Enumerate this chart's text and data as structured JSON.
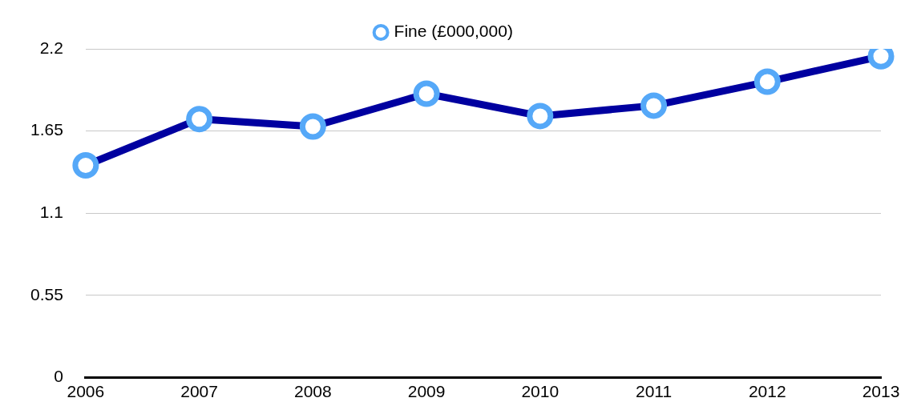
{
  "chart_data": {
    "type": "line",
    "categories": [
      "2006",
      "2007",
      "2008",
      "2009",
      "2010",
      "2011",
      "2012",
      "2013"
    ],
    "series": [
      {
        "name": "Fine (£000,000)",
        "color": "#0000a0",
        "values": [
          1.42,
          1.73,
          1.68,
          1.9,
          1.75,
          1.82,
          1.98,
          2.15
        ]
      }
    ],
    "ylim": [
      0,
      2.2
    ],
    "yticks": [
      0,
      0.55,
      1.1,
      1.65,
      2.2
    ],
    "grid": "y",
    "legend": "top",
    "marker": "circle",
    "line_style": "solid"
  }
}
